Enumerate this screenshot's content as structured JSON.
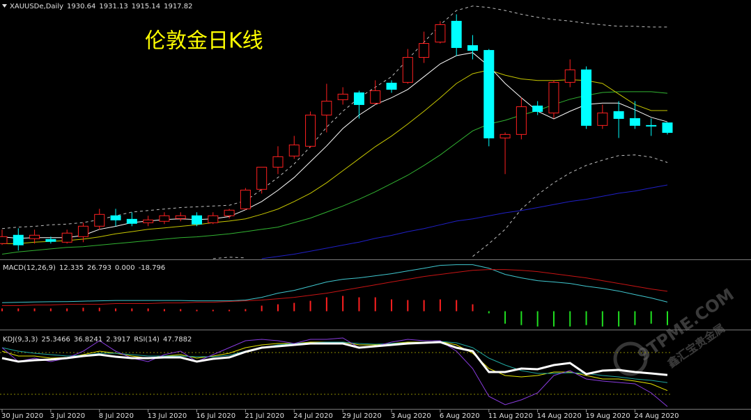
{
  "chart_data": {
    "type": "candlestick",
    "title": "伦敦金日K线",
    "symbol": "XAUUSDe,Daily",
    "categories": [
      "30 Jun 2020",
      null,
      null,
      "3 Jul 2020",
      null,
      null,
      "8 Jul 2020",
      null,
      null,
      "13 Jul 2020",
      null,
      null,
      "16 Jul 2020",
      null,
      null,
      "21 Jul 2020",
      null,
      null,
      "24 Jul 2020",
      null,
      null,
      "29 Jul 2020",
      null,
      null,
      "3 Aug 2020",
      null,
      null,
      "6 Aug 2020",
      null,
      null,
      "11 Aug 2020",
      null,
      null,
      "14 Aug 2020",
      null,
      null,
      "19 Aug 2020",
      null,
      null,
      "24 Aug 2020",
      null,
      null
    ],
    "open": [
      1770.1,
      1781.2,
      1776.6,
      1775.6,
      1771.9,
      1779.3,
      1793.2,
      1807.1,
      1802.4,
      1797.8,
      1799.7,
      1803.4,
      1807.1,
      1797.8,
      1807.1,
      1816.3,
      1842.2,
      1871.7,
      1886.5,
      1899.5,
      1941.0,
      1961.4,
      1970.6,
      1956.7,
      1983.5,
      1984.5,
      2017.7,
      2038.1,
      2065.8,
      2033.4,
      2027.0,
      1910.5,
      1915.2,
      1953.1,
      1943.8,
      1984.5,
      2001.1,
      1927.2,
      1945.7,
      1936.4,
      1927.2,
      1930.64
    ],
    "high": [
      1788.6,
      1790.4,
      1788.6,
      1779.3,
      1788.6,
      1797.8,
      1816.3,
      1816.3,
      1811.7,
      1807.1,
      1811.7,
      1811.7,
      1811.7,
      1811.7,
      1816.3,
      1844.0,
      1871.7,
      1899.5,
      1913.3,
      1945.7,
      1982.6,
      1978.0,
      1973.4,
      1987.2,
      1987.2,
      2028.8,
      2051.9,
      2065.8,
      2075.0,
      2047.3,
      2028.8,
      1917.9,
      1964.1,
      1959.5,
      1987.2,
      2015.0,
      2005.7,
      1954.9,
      1959.5,
      1959.5,
      1936.4,
      1931.13
    ],
    "low": [
      1768.3,
      1760.9,
      1770.1,
      1770.1,
      1770.1,
      1771.9,
      1788.6,
      1793.2,
      1793.2,
      1793.2,
      1796.0,
      1799.7,
      1793.2,
      1796.0,
      1803.4,
      1814.5,
      1836.6,
      1862.5,
      1882.8,
      1897.6,
      1917.9,
      1954.9,
      1936.4,
      1954.9,
      1970.6,
      1982.6,
      2010.3,
      2036.2,
      2019.6,
      2015.0,
      1899.5,
      1862.5,
      1908.7,
      1941.0,
      1936.4,
      1978.0,
      1922.6,
      1922.6,
      1910.5,
      1922.6,
      1913.3,
      1915.14
    ],
    "close": [
      1779.3,
      1768.3,
      1781.2,
      1772.9,
      1784.0,
      1793.2,
      1808.9,
      1801.5,
      1796.9,
      1801.5,
      1807.1,
      1807.1,
      1796.0,
      1807.1,
      1814.5,
      1841.2,
      1871.7,
      1885.6,
      1901.3,
      1941.0,
      1959.5,
      1968.8,
      1954.9,
      1973.4,
      1975.2,
      2017.7,
      2036.2,
      2061.2,
      2030.7,
      2027.0,
      1910.5,
      1915.2,
      1952.1,
      1945.7,
      1984.5,
      2001.1,
      1927.2,
      1943.8,
      1936.4,
      1927.2,
      1926.3,
      1917.82
    ],
    "up_color": "#ff2020",
    "down_color": "#00ffff",
    "ylim": [
      1750,
      2094
    ],
    "overlays": [
      {
        "color": "#32b432",
        "values": [
          1756,
          1759,
          1761,
          1763,
          1765,
          1766,
          1768,
          1770,
          1772,
          1774,
          1776,
          1778,
          1779,
          1781,
          1783,
          1786,
          1789,
          1792,
          1798,
          1804,
          1812,
          1820,
          1829,
          1839,
          1850,
          1861,
          1874,
          1888,
          1904,
          1920,
          1929,
          1934,
          1941,
          1947,
          1955,
          1962,
          1967,
          1971,
          1972,
          1972,
          1972,
          1970
        ]
      },
      {
        "color": "#2020c8",
        "values": [
          null,
          null,
          null,
          null,
          null,
          null,
          null,
          null,
          null,
          null,
          null,
          null,
          null,
          null,
          null,
          null,
          1750,
          1753,
          1756,
          1760,
          1764,
          1768,
          1772,
          1777,
          1781,
          1786,
          1790,
          1795,
          1800,
          1803,
          1807,
          1811,
          1814,
          1818,
          1822,
          1826,
          1829,
          1833,
          1837,
          1840,
          1844,
          1848
        ]
      },
      {
        "color": "#c8c800",
        "values": [
          1770,
          1770,
          1772,
          1773,
          1774,
          1776,
          1779,
          1783,
          1786,
          1789,
          1791,
          1793,
          1795,
          1798,
          1800,
          1803,
          1809,
          1816,
          1826,
          1837,
          1851,
          1867,
          1883,
          1899,
          1913,
          1929,
          1946,
          1964,
          1983,
          1996,
          2001,
          1994,
          1989,
          1987,
          1987,
          1988,
          1987,
          1983,
          1969,
          1955,
          1947,
          1947
        ]
      },
      {
        "color": "#ffffff",
        "values": [
          1779,
          1777,
          1778,
          1778,
          1778,
          1781,
          1789,
          1793,
          1798,
          1800,
          1802,
          1803,
          1802,
          1803,
          1806,
          1815,
          1826,
          1841,
          1858,
          1879,
          1900,
          1923,
          1941,
          1955,
          1964,
          1975,
          1992,
          2009,
          2020,
          2024,
          2006,
          1983,
          1964,
          1946,
          1936,
          1946,
          1955,
          1957,
          1957,
          1948,
          1938,
          1932
        ]
      },
      {
        "color": "#c0c0c0",
        "dashed": true,
        "values": [
          1790,
          1792,
          1793,
          1795,
          1796,
          1798,
          1802,
          1807,
          1812,
          1814,
          1816,
          1818,
          1819,
          1820,
          1821,
          1827,
          1842,
          1858,
          1876,
          1899,
          1925,
          1946,
          1964,
          1978,
          1992,
          2015,
          2038,
          2061,
          2080,
          2086,
          2084,
          2080,
          2075,
          2071,
          2068,
          2066,
          2063,
          2061,
          2059,
          2059,
          2058,
          2058
        ]
      },
      {
        "color": "#c0c0c0",
        "dashed": true,
        "values": [
          null,
          null,
          null,
          null,
          null,
          null,
          null,
          null,
          null,
          null,
          null,
          null,
          null,
          1750,
          1752,
          1751,
          null,
          null,
          null,
          null,
          null,
          null,
          null,
          null,
          null,
          null,
          null,
          null,
          null,
          1753,
          1770,
          1789,
          1816,
          1835,
          1851,
          1864,
          1874,
          1881,
          1887,
          1888,
          1885,
          1878
        ]
      }
    ],
    "indicators": [
      {
        "label": "MACD(12,26,9)",
        "ylim": [
          -21,
          66
        ],
        "series": [
          {
            "type": "line",
            "color": "#40c8d0",
            "values": [
              11.5,
              12,
              12.5,
              12.8,
              13,
              13.5,
              14,
              14.5,
              14.5,
              14.5,
              14.5,
              14.5,
              14,
              14,
              14,
              15.0,
              18.7,
              24.3,
              28.0,
              33.6,
              39.3,
              43.0,
              44.9,
              47.7,
              50.5,
              54.2,
              57.9,
              61.7,
              62.6,
              62.6,
              57.9,
              49.5,
              44.9,
              41.1,
              39.3,
              37.4,
              33.6,
              30.8,
              27.1,
              22.4,
              17.8,
              12.335
            ]
          },
          {
            "type": "line",
            "color": "#c81414",
            "values": [
              7.5,
              7.5,
              8.4,
              8.4,
              9.3,
              9.3,
              9.3,
              10.3,
              10.3,
              10.3,
              11.2,
              11.2,
              12.1,
              12.1,
              13.1,
              14.0,
              15.0,
              16.8,
              18.7,
              21.5,
              24.3,
              28.0,
              31.8,
              35.5,
              39.3,
              43.0,
              46.7,
              49.5,
              52.3,
              55.1,
              56.1,
              56.1,
              55.1,
              53.3,
              50.5,
              47.7,
              44.9,
              41.1,
              37.4,
              33.6,
              29.9,
              26.793
            ]
          },
          {
            "type": "bar",
            "color": "#ff2020",
            "values": [
              3.7,
              3.7,
              3.7,
              3.7,
              3.7,
              4.7,
              4.7,
              3.7,
              3.7,
              3.7,
              2.8,
              2.8,
              1.9,
              1.9,
              1.9,
              2.8,
              7.5,
              9.3,
              11.2,
              14.0,
              18.7,
              20.6,
              18.7,
              18.7,
              15.9,
              15.0,
              15.0,
              15.9,
              15.0,
              9.3,
              0,
              0,
              0,
              0,
              0,
              0,
              0,
              0,
              0,
              0,
              0,
              0
            ],
            "value_labels": [
              null,
              null,
              null,
              null,
              null,
              null,
              null,
              null,
              null,
              null,
              null,
              null,
              null,
              null,
              null,
              null,
              null,
              null,
              null,
              null,
              null,
              null,
              null,
              null,
              null,
              null,
              null,
              null,
              null,
              null,
              null,
              null,
              null,
              null,
              null,
              null,
              null,
              null,
              null,
              null,
              null,
              "0.000"
            ]
          },
          {
            "type": "bar",
            "color": "#20e020",
            "values": [
              0,
              0,
              0,
              0,
              0,
              0,
              0,
              0,
              0,
              0,
              0,
              0,
              0,
              0,
              0,
              0,
              0,
              0,
              0,
              0,
              0,
              0,
              0,
              0,
              0,
              0,
              0,
              0,
              0,
              0,
              -2.8,
              -16.8,
              -18.7,
              -20.6,
              -20.6,
              -20.6,
              -18.7,
              -20.6,
              -20.6,
              -18.7,
              -16.8,
              -18.796
            ]
          }
        ]
      },
      {
        "label": "KDJ(9,3,3)",
        "ylim": [
          -1,
          107
        ],
        "levels": [
          80,
          20
        ],
        "level_color": "#8c8c00",
        "series": [
          {
            "type": "line",
            "color": "#e6e600",
            "values": [
              82,
              75,
              75,
              72,
              73,
              77,
              82,
              79,
              75,
              72,
              75,
              77,
              72,
              75,
              79,
              87,
              91,
              93,
              93,
              95,
              95,
              95,
              91,
              91,
              93,
              95,
              95,
              96,
              91,
              79,
              57,
              47,
              45,
              47,
              52,
              52,
              47,
              42,
              42,
              39,
              35,
              25.3466
            ]
          },
          {
            "type": "line",
            "color": "#20a8a0",
            "values": [
              87,
              82,
              79,
              77,
              75,
              76,
              79,
              79,
              77,
              75,
              75,
              75,
              74,
              74,
              76,
              82,
              87,
              91,
              93,
              94,
              95,
              95,
              93,
              92,
              93,
              94,
              95,
              96,
              94,
              87,
              72,
              62,
              54,
              50,
              50,
              51,
              50,
              47,
              45,
              42,
              40,
              36.8241
            ]
          },
          {
            "type": "line",
            "color": "#8a3ce0",
            "values": [
              87,
              67,
              72,
              67,
              72,
              82,
              97,
              82,
              72,
              67,
              77,
              82,
              67,
              77,
              87,
              97,
              99,
              97,
              93,
              99,
              99,
              101,
              87,
              89,
              95,
              99,
              97,
              97,
              82,
              57,
              17,
              5,
              12,
              22,
              47,
              54,
              42,
              39,
              37,
              35,
              22,
              2.3917
            ]
          },
          {
            "type": "line",
            "color": "#ffffff",
            "width": 3,
            "label": "RSI(14)",
            "values": [
              72,
              67,
              69,
              70,
              72,
              75,
              77,
              74,
              72,
              72,
              73,
              73,
              67,
              71,
              73,
              81,
              87,
              89,
              91,
              93,
              93,
              93,
              87,
              89,
              91,
              93,
              94,
              95,
              87,
              82,
              52,
              52,
              57,
              56,
              62,
              65,
              49,
              54,
              55,
              52,
              50,
              47.7882
            ]
          }
        ]
      }
    ]
  },
  "watermark": [
    "9TPME.COM",
    "鑫汇宝贵金属"
  ]
}
